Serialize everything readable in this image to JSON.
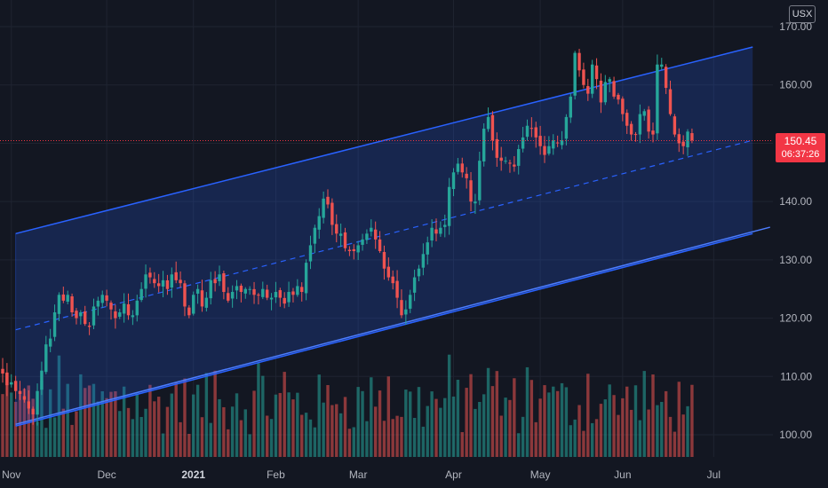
{
  "chart_data": {
    "type": "candlestick",
    "price_axis": {
      "ticks": [
        "100.00",
        "110.00",
        "120.00",
        "130.00",
        "140.00",
        "150.00",
        "160.00",
        "170.00"
      ],
      "range": [
        96,
        172
      ]
    },
    "time_axis": {
      "ticks": [
        {
          "label": "Nov",
          "index": 2,
          "bold": false
        },
        {
          "label": "Dec",
          "index": 24,
          "bold": false
        },
        {
          "label": "2021",
          "index": 44,
          "bold": true
        },
        {
          "label": "Feb",
          "index": 63,
          "bold": false
        },
        {
          "label": "Mar",
          "index": 82,
          "bold": false
        },
        {
          "label": "Apr",
          "index": 104,
          "bold": false
        },
        {
          "label": "May",
          "index": 124,
          "bold": false
        },
        {
          "label": "Jun",
          "index": 143,
          "bold": false
        },
        {
          "label": "Jul",
          "index": 164,
          "bold": false
        }
      ]
    },
    "currency": "USX",
    "last_price": "150.45",
    "last_price_value": 150.45,
    "countdown": "06:37:26",
    "channel": {
      "start_index": 3,
      "end_index": 173,
      "upper": [
        134.5,
        166.5
      ],
      "middle": [
        118,
        150.5
      ],
      "lower": [
        101.5,
        134.5
      ]
    },
    "support_line": {
      "start_index": 3,
      "end_index": 177,
      "start": 101.8,
      "end": 135.6
    },
    "closes": [
      110.5,
      108.5,
      109,
      107.5,
      107,
      106,
      104.5,
      103.5,
      107.5,
      111,
      115.5,
      116.5,
      121,
      124,
      123,
      124,
      121,
      120,
      121,
      119,
      118.5,
      122,
      123,
      124,
      123,
      121.5,
      120,
      121,
      122.5,
      120.5,
      120.5,
      123,
      125,
      127.5,
      127,
      126,
      125.5,
      126.5,
      125,
      127.5,
      126.5,
      126,
      122,
      120.5,
      124,
      125,
      122,
      123.5,
      126.5,
      126,
      127.5,
      124.5,
      123,
      124.5,
      125.5,
      124.5,
      125,
      125,
      124,
      124,
      125,
      123.5,
      123.5,
      124.5,
      123.5,
      122.5,
      124.5,
      124,
      125.5,
      124.5,
      129.5,
      132.5,
      135.5,
      137.5,
      140.5,
      139.5,
      136,
      134.5,
      134.5,
      132,
      131.5,
      131.5,
      132.5,
      133.5,
      134.5,
      135.5,
      133.5,
      131.5,
      128.5,
      127,
      126,
      123.5,
      120.5,
      121.5,
      124,
      127,
      128.5,
      131,
      133,
      135.5,
      134.5,
      135.5,
      136,
      142.5,
      145,
      146.5,
      145,
      144,
      140,
      140,
      147,
      152.5,
      154.5,
      150.5,
      147.5,
      147,
      147,
      146.5,
      146,
      149,
      151,
      153,
      152.5,
      151,
      149.5,
      148,
      149.5,
      150.5,
      150,
      150.5,
      154.5,
      158,
      165.5,
      162.5,
      160,
      158.5,
      163.5,
      161,
      157,
      160.5,
      161,
      158,
      157.5,
      155,
      153,
      151.5,
      151.5,
      155,
      155.5,
      152,
      151.5,
      163.5,
      163.5,
      159.5,
      155,
      151.5,
      150,
      149.5,
      152,
      150.5
    ]
  }
}
